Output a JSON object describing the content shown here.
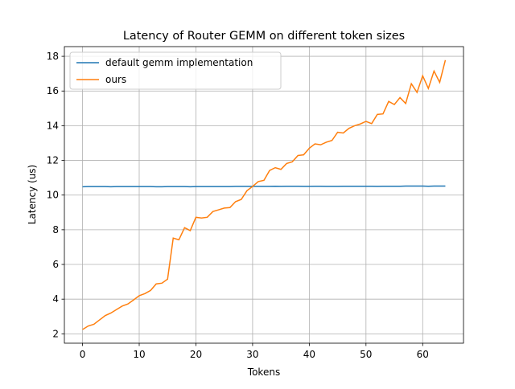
{
  "chart_data": {
    "type": "line",
    "title": "Latency of Router GEMM on different token sizes",
    "xlabel": "Tokens",
    "ylabel": "Latency (us)",
    "x": [
      0,
      1,
      2,
      3,
      4,
      5,
      6,
      7,
      8,
      9,
      10,
      11,
      12,
      13,
      14,
      15,
      16,
      17,
      18,
      19,
      20,
      21,
      22,
      23,
      24,
      25,
      26,
      27,
      28,
      29,
      30,
      31,
      32,
      33,
      34,
      35,
      36,
      37,
      38,
      39,
      40,
      41,
      42,
      43,
      44,
      45,
      46,
      47,
      48,
      49,
      50,
      51,
      52,
      53,
      54,
      55,
      56,
      57,
      58,
      59,
      60,
      61,
      62,
      63,
      64
    ],
    "series": [
      {
        "name": "default gemm implementation",
        "color": "#1f77b4",
        "values": [
          10.48,
          10.49,
          10.49,
          10.49,
          10.49,
          10.48,
          10.49,
          10.49,
          10.49,
          10.49,
          10.49,
          10.49,
          10.49,
          10.48,
          10.48,
          10.49,
          10.49,
          10.49,
          10.49,
          10.48,
          10.49,
          10.49,
          10.49,
          10.49,
          10.49,
          10.49,
          10.49,
          10.5,
          10.5,
          10.5,
          10.5,
          10.5,
          10.5,
          10.5,
          10.51,
          10.5,
          10.51,
          10.51,
          10.51,
          10.5,
          10.5,
          10.51,
          10.51,
          10.5,
          10.5,
          10.5,
          10.51,
          10.51,
          10.51,
          10.51,
          10.51,
          10.51,
          10.5,
          10.51,
          10.51,
          10.51,
          10.51,
          10.52,
          10.52,
          10.52,
          10.52,
          10.51,
          10.52,
          10.52,
          10.52
        ]
      },
      {
        "name": "ours",
        "color": "#ff7f0e",
        "values": [
          2.25,
          2.45,
          2.55,
          2.8,
          3.05,
          3.2,
          3.4,
          3.6,
          3.72,
          3.95,
          4.2,
          4.32,
          4.5,
          4.88,
          4.92,
          5.15,
          7.52,
          7.42,
          8.12,
          7.95,
          8.72,
          8.68,
          8.72,
          9.05,
          9.15,
          9.25,
          9.28,
          9.62,
          9.75,
          10.25,
          10.5,
          10.78,
          10.85,
          11.42,
          11.58,
          11.48,
          11.82,
          11.92,
          12.28,
          12.32,
          12.7,
          12.95,
          12.9,
          13.05,
          13.15,
          13.62,
          13.58,
          13.85,
          14.0,
          14.1,
          14.25,
          14.12,
          14.65,
          14.68,
          15.4,
          15.22,
          15.62,
          15.28,
          16.42,
          15.92,
          16.88,
          16.15,
          17.15,
          16.5,
          17.78
        ]
      }
    ],
    "xlim": [
      -3.2,
      67.2
    ],
    "ylim": [
      1.46,
      18.56
    ],
    "xticks": [
      0,
      10,
      20,
      30,
      40,
      50,
      60
    ],
    "yticks": [
      2,
      4,
      6,
      8,
      10,
      12,
      14,
      16,
      18
    ],
    "grid": true,
    "legend": "upper left"
  }
}
